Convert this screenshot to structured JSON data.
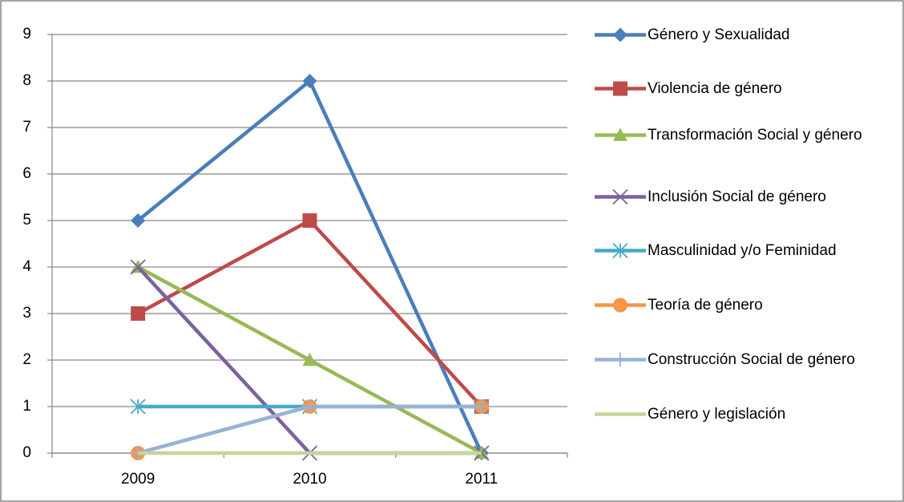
{
  "chart_data": {
    "type": "line",
    "categories": [
      "2009",
      "2010",
      "2011"
    ],
    "series": [
      {
        "name": "Género y Sexualidad",
        "color": "#4a7ebb",
        "marker": "diamond",
        "values": [
          5,
          8,
          0
        ]
      },
      {
        "name": "Violencia de género",
        "color": "#be4b48",
        "marker": "square",
        "values": [
          3,
          5,
          1
        ]
      },
      {
        "name": "Transformación Social y género",
        "color": "#98b954",
        "marker": "triangle",
        "values": [
          4,
          2,
          0
        ]
      },
      {
        "name": "Inclusión Social de género",
        "color": "#7d60a0",
        "marker": "x",
        "values": [
          4,
          0,
          0
        ]
      },
      {
        "name": "Masculinidad y/o Feminidad",
        "color": "#46aac5",
        "marker": "star",
        "values": [
          1,
          1,
          1
        ]
      },
      {
        "name": "Teoría de género",
        "color": "#f79646",
        "marker": "circle",
        "values": [
          0,
          1,
          1
        ]
      },
      {
        "name": "Construcción Social de género",
        "color": "#95b3d7",
        "marker": "plus",
        "values": [
          0,
          1,
          1
        ]
      },
      {
        "name": "Género y legislación",
        "color": "#c3d69b",
        "marker": "none",
        "values": [
          0,
          0,
          0
        ]
      }
    ],
    "ylim": [
      0,
      9
    ],
    "yticks": [
      0,
      1,
      2,
      3,
      4,
      5,
      6,
      7,
      8,
      9
    ],
    "grid": true,
    "legend": "right"
  }
}
